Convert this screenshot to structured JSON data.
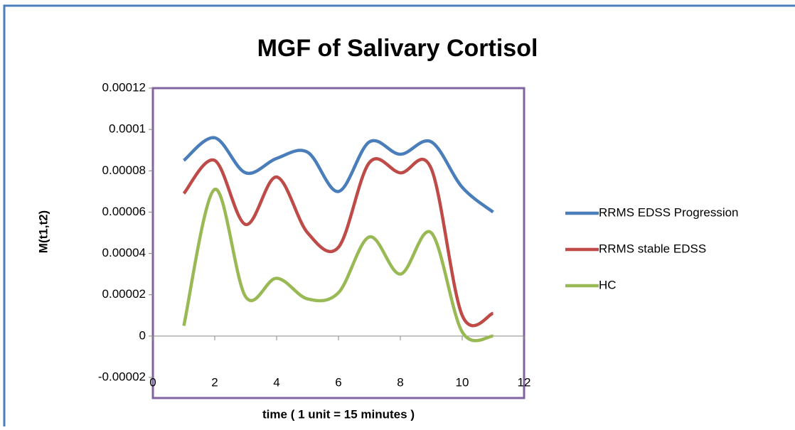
{
  "chart_data": {
    "type": "line",
    "title": "MGF of Salivary Cortisol",
    "x_label": "time ( 1 unit =  15 minutes )",
    "y_label": "M(t1,t2)",
    "x": [
      1,
      2,
      3,
      4,
      5,
      6,
      7,
      8,
      9,
      10,
      11
    ],
    "series": [
      {
        "name": "RRMS EDSS Progression",
        "color": "#4a7ebb",
        "values": [
          8.5e-05,
          9.6e-05,
          7.9e-05,
          8.6e-05,
          8.9e-05,
          7e-05,
          9.4e-05,
          8.8e-05,
          9.4e-05,
          7.2e-05,
          6e-05
        ]
      },
      {
        "name": "RRMS stable EDSS",
        "color": "#be4b48",
        "values": [
          6.9e-05,
          8.5e-05,
          5.4e-05,
          7.7e-05,
          5e-05,
          4.3e-05,
          8.4e-05,
          7.9e-05,
          8.1e-05,
          1e-05,
          1.1e-05
        ]
      },
      {
        "name": "HC",
        "color": "#98b954",
        "values": [
          5e-06,
          7.1e-05,
          1.9e-05,
          2.8e-05,
          1.8e-05,
          2.1e-05,
          4.8e-05,
          3e-05,
          5e-05,
          2e-06,
          0
        ]
      }
    ],
    "xlim": [
      0,
      12
    ],
    "xticks": [
      0,
      2,
      4,
      6,
      8,
      10,
      12
    ],
    "ylim": [
      -2e-05,
      0.00012
    ],
    "yticks": [
      -2e-05,
      0,
      2e-05,
      4e-05,
      6e-05,
      8e-05,
      0.0001,
      0.00012
    ],
    "legend": "right",
    "smooth": true
  }
}
